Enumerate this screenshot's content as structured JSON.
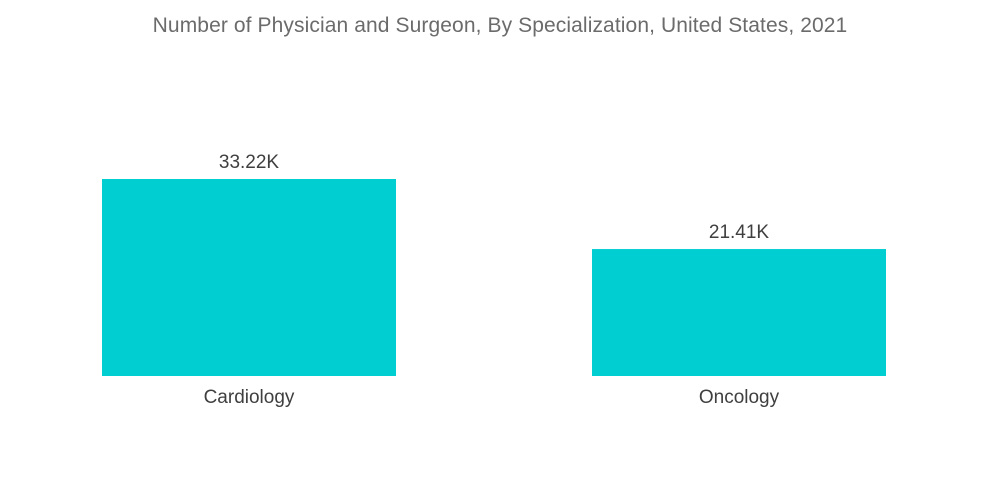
{
  "chart_data": {
    "type": "bar",
    "title": "Number of Physician and Surgeon, By Specialization, United States, 2021",
    "categories": [
      "Cardiology",
      "Oncology"
    ],
    "values": [
      33.22,
      21.41
    ],
    "value_labels": [
      "33.22K",
      "21.41K"
    ],
    "xlabel": "",
    "ylabel": "",
    "ylim": [
      0,
      33.22
    ],
    "grid": false,
    "legend": "none",
    "bar_color": "#00CED1"
  }
}
